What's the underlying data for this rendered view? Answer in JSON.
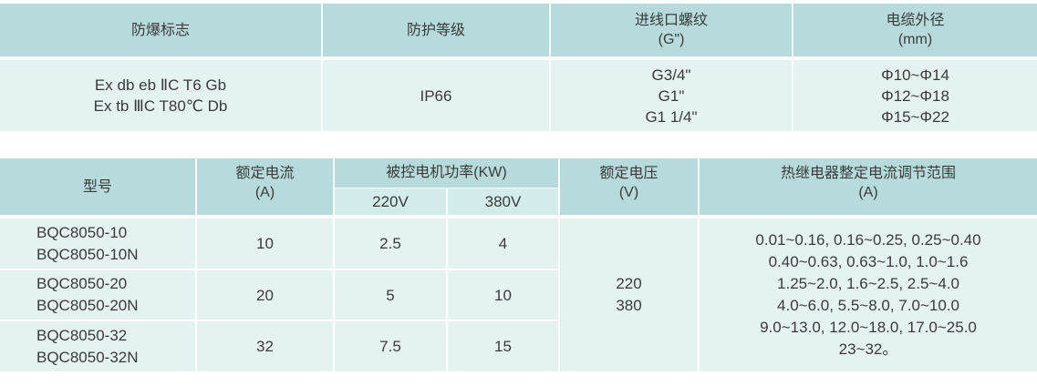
{
  "table1": {
    "headers": [
      "防爆标志",
      "防护等级",
      "进线口螺纹\n(G\")",
      "电缆外径\n(mm)"
    ],
    "header_lines": {
      "explosion_mark": [
        "防爆标志"
      ],
      "protection": [
        "防护等级"
      ],
      "thread": [
        "进线口螺纹",
        "(G\")"
      ],
      "cable": [
        "电缆外径",
        "(mm)"
      ]
    },
    "row": {
      "explosion_mark": [
        "Ex db eb ⅡC T6 Gb",
        "Ex tb ⅢC T80℃ Db"
      ],
      "protection": "IP66",
      "thread": [
        "G3/4\"",
        "G1\"",
        "G1 1/4\""
      ],
      "cable": [
        "Φ10~Φ14",
        "Φ12~Φ18",
        "Φ15~Φ22"
      ]
    }
  },
  "table2": {
    "headers": {
      "model": "型号",
      "rated_current": [
        "额定电流",
        "(A)"
      ],
      "motor_power": "被控电机功率(KW)",
      "power_220": "220V",
      "power_380": "380V",
      "rated_voltage": [
        "额定电压",
        "(V)"
      ],
      "relay_range": [
        "热继电器整定电流调节范围",
        "(A)"
      ]
    },
    "rows": [
      {
        "models": [
          "BQC8050-10",
          "BQC8050-10N"
        ],
        "current": "10",
        "p220": "2.5",
        "p380": "4"
      },
      {
        "models": [
          "BQC8050-20",
          "BQC8050-20N"
        ],
        "current": "20",
        "p220": "5",
        "p380": "10"
      },
      {
        "models": [
          "BQC8050-32",
          "BQC8050-32N"
        ],
        "current": "32",
        "p220": "7.5",
        "p380": "15"
      }
    ],
    "voltage": [
      "220",
      "380"
    ],
    "relay_ranges": [
      "0.01~0.16, 0.16~0.25, 0.25~0.40",
      "0.40~0.63, 0.63~1.0, 1.0~1.6",
      "1.25~2.0, 1.6~2.5, 2.5~4.0",
      "4.0~6.0, 5.5~8.0, 7.0~10.0",
      "9.0~13.0, 12.0~18.0, 17.0~25.0",
      "23~32。"
    ]
  }
}
